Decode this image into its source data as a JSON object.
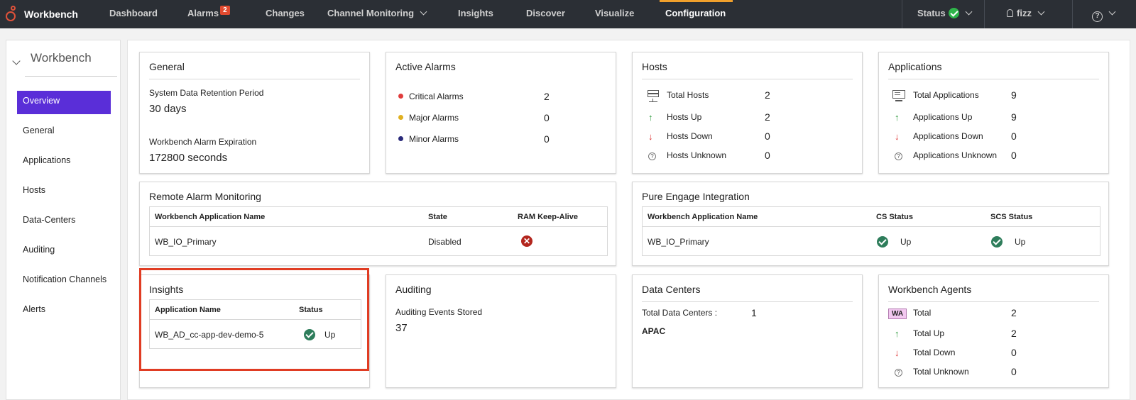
{
  "nav": {
    "brand": "Workbench",
    "items": [
      {
        "label": "Dashboard"
      },
      {
        "label": "Alarms",
        "badge": "2"
      },
      {
        "label": "Changes"
      },
      {
        "label": "Channel Monitoring"
      },
      {
        "label": "Insights"
      },
      {
        "label": "Discover"
      },
      {
        "label": "Visualize"
      },
      {
        "label": "Configuration",
        "active": true
      }
    ],
    "status_label": "Status",
    "user": "fizz",
    "help": "?"
  },
  "sidebar": {
    "title": "Workbench",
    "items": [
      "Overview",
      "General",
      "Applications",
      "Hosts",
      "Data-Centers",
      "Auditing",
      "Notification Channels",
      "Alerts"
    ],
    "active": "Overview"
  },
  "general": {
    "title": "General",
    "retention_label": "System Data Retention Period",
    "retention_value": "30 days",
    "expiration_label": "Workbench Alarm Expiration",
    "expiration_value": "172800 seconds"
  },
  "active_alarms": {
    "title": "Active Alarms",
    "rows": [
      {
        "label": "Critical Alarms",
        "value": "2",
        "color": "#e03c3c"
      },
      {
        "label": "Major Alarms",
        "value": "0",
        "color": "#e0b020"
      },
      {
        "label": "Minor Alarms",
        "value": "0",
        "color": "#2a2a7a"
      }
    ]
  },
  "hosts": {
    "title": "Hosts",
    "rows": [
      {
        "label": "Total Hosts",
        "value": "2"
      },
      {
        "label": "Hosts Up",
        "value": "2"
      },
      {
        "label": "Hosts Down",
        "value": "0"
      },
      {
        "label": "Hosts Unknown",
        "value": "0"
      }
    ]
  },
  "applications": {
    "title": "Applications",
    "rows": [
      {
        "label": "Total Applications",
        "value": "9"
      },
      {
        "label": "Applications Up",
        "value": "9"
      },
      {
        "label": "Applications Down",
        "value": "0"
      },
      {
        "label": "Applications Unknown",
        "value": "0"
      }
    ]
  },
  "remote_alarm": {
    "title": "Remote Alarm Monitoring",
    "headers": [
      "Workbench Application Name",
      "State",
      "RAM Keep-Alive"
    ],
    "row": {
      "name": "WB_IO_Primary",
      "state": "Disabled"
    }
  },
  "pure_engage": {
    "title": "Pure Engage Integration",
    "headers": [
      "Workbench Application Name",
      "CS Status",
      "SCS Status"
    ],
    "row": {
      "name": "WB_IO_Primary",
      "cs": "Up",
      "scs": "Up"
    }
  },
  "insights": {
    "title": "Insights",
    "headers": [
      "Application Name",
      "Status"
    ],
    "row": {
      "name": "WB_AD_cc-app-dev-demo-5",
      "status": "Up"
    }
  },
  "auditing": {
    "title": "Auditing",
    "label": "Auditing Events Stored",
    "value": "37"
  },
  "data_centers": {
    "title": "Data Centers",
    "total_label": "Total Data Centers :",
    "total_value": "1",
    "region": "APAC"
  },
  "agents": {
    "title": "Workbench Agents",
    "badge": "WA",
    "rows": [
      {
        "label": "Total",
        "value": "2"
      },
      {
        "label": "Total Up",
        "value": "2"
      },
      {
        "label": "Total Down",
        "value": "0"
      },
      {
        "label": "Total Unknown",
        "value": "0"
      }
    ]
  },
  "icons": {
    "up": "↑",
    "down": "↓",
    "unknown": "?",
    "error": "✕"
  }
}
